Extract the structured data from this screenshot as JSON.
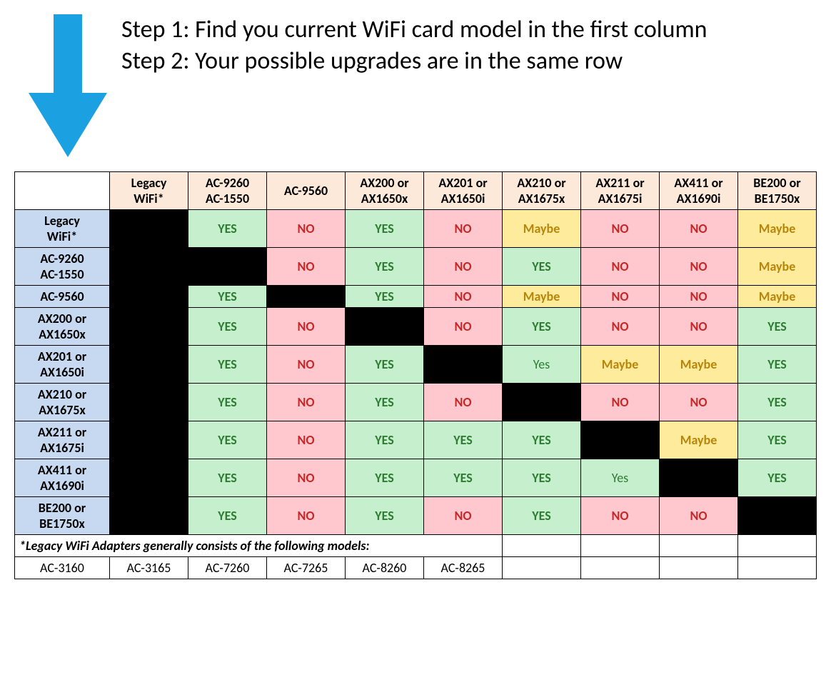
{
  "colors": {
    "arrow": "#1ba1e2",
    "header_col_bg": "#fde9d9",
    "header_row_bg": "#c6d9f1",
    "yes_bg": "#c6efce",
    "no_bg": "#ffc7ce",
    "maybe_bg": "#ffeb9c",
    "black_bg": "#000000",
    "yes_text": "#2e7d32",
    "no_text": "#c62828",
    "maybe_text": "#b8860b",
    "border": "#000000"
  },
  "steps": {
    "line1": "Step 1: Find you current WiFi card model in the first column",
    "line2": "Step 2: Your possible upgrades are in the same row"
  },
  "col_headers": [
    "",
    "Legacy WiFi*",
    "AC-9260 AC-1550",
    "AC-9560",
    "AX200 or AX1650x",
    "AX201 or AX1650i",
    "AX210 or AX1675x",
    "AX211 or AX1675i",
    "AX411 or AX1690i",
    "BE200 or BE1750x"
  ],
  "row_headers": [
    "Legacy WiFi*",
    "AC-9260 AC-1550",
    "AC-9560",
    "AX200 or AX1650x",
    "AX201 or AX1650i",
    "AX210 or AX1675x",
    "AX211 or AX1675i",
    "AX411 or AX1690i",
    "BE200 or BE1750x"
  ],
  "cells": [
    [
      "BLACK",
      "YES",
      "NO",
      "YES",
      "NO",
      "Maybe",
      "NO",
      "NO",
      "Maybe"
    ],
    [
      "BLACK",
      "BLACK",
      "NO",
      "YES",
      "NO",
      "YES",
      "NO",
      "NO",
      "Maybe"
    ],
    [
      "BLACK",
      "YES",
      "BLACK",
      "YES",
      "NO",
      "Maybe",
      "NO",
      "NO",
      "Maybe"
    ],
    [
      "BLACK",
      "YES",
      "NO",
      "BLACK",
      "NO",
      "YES",
      "NO",
      "NO",
      "YES"
    ],
    [
      "BLACK",
      "YES",
      "NO",
      "YES",
      "BLACK",
      "Yes",
      "Maybe",
      "Maybe",
      "YES"
    ],
    [
      "BLACK",
      "YES",
      "NO",
      "YES",
      "NO",
      "BLACK",
      "NO",
      "NO",
      "YES"
    ],
    [
      "BLACK",
      "YES",
      "NO",
      "YES",
      "YES",
      "YES",
      "BLACK",
      "Maybe",
      "YES"
    ],
    [
      "BLACK",
      "YES",
      "NO",
      "YES",
      "YES",
      "YES",
      "Yes",
      "BLACK",
      "YES"
    ],
    [
      "BLACK",
      "YES",
      "NO",
      "YES",
      "NO",
      "YES",
      "NO",
      "NO",
      "BLACK"
    ]
  ],
  "footnote": "*Legacy WiFi Adapters generally consists of the following models:",
  "legacy_models": [
    "AC-3160",
    "AC-3165",
    "AC-7260",
    "AC-7265",
    "AC-8260",
    "AC-8265"
  ]
}
